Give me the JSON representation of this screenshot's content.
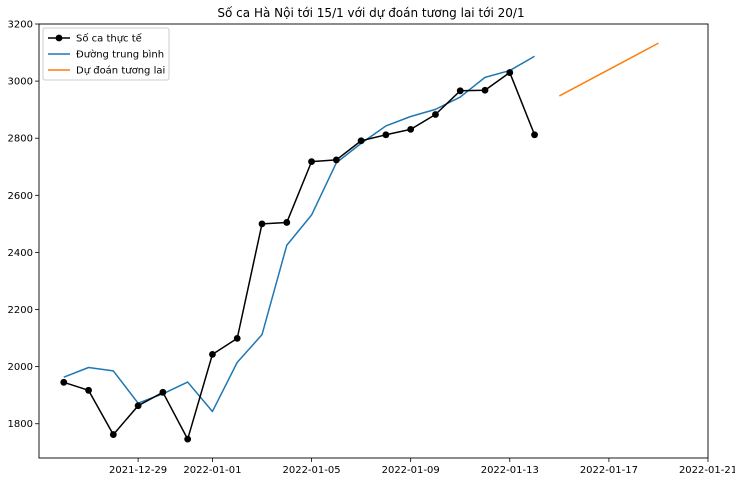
{
  "chart_data": {
    "type": "line",
    "title": "Số ca Hà Nội tới 15/1 với dự đoán tương lai tới 20/1",
    "xlabel": "",
    "ylabel": "",
    "xlim": [
      "2021-12-25",
      "2022-01-21"
    ],
    "ylim": [
      1680,
      3200
    ],
    "x_ticks": [
      "2021-12-29",
      "2022-01-01",
      "2022-01-05",
      "2022-01-09",
      "2022-01-13",
      "2022-01-17",
      "2022-01-21"
    ],
    "y_ticks": [
      1800,
      2000,
      2200,
      2400,
      2600,
      2800,
      3000,
      3200
    ],
    "grid": false,
    "legend_position": "top-left",
    "series": [
      {
        "name": "Số ca thực tế",
        "color": "#000000",
        "marker": "circle",
        "x": [
          "2021-12-26",
          "2021-12-27",
          "2021-12-28",
          "2021-12-29",
          "2021-12-30",
          "2021-12-31",
          "2022-01-01",
          "2022-01-02",
          "2022-01-03",
          "2022-01-04",
          "2022-01-05",
          "2022-01-06",
          "2022-01-07",
          "2022-01-08",
          "2022-01-09",
          "2022-01-10",
          "2022-01-11",
          "2022-01-12",
          "2022-01-13",
          "2022-01-14"
        ],
        "values": [
          1945,
          1917,
          1762,
          1863,
          1910,
          1746,
          2043,
          2099,
          2500,
          2505,
          2718,
          2724,
          2791,
          2812,
          2831,
          2883,
          2966,
          2968,
          3030,
          2812
        ]
      },
      {
        "name": "Đường trung bình",
        "color": "#1f77b4",
        "marker": "none",
        "x": [
          "2021-12-26",
          "2021-12-27",
          "2021-12-28",
          "2021-12-29",
          "2021-12-30",
          "2021-12-31",
          "2022-01-01",
          "2022-01-02",
          "2022-01-03",
          "2022-01-04",
          "2022-01-05",
          "2022-01-06",
          "2022-01-07",
          "2022-01-08",
          "2022-01-09",
          "2022-01-10",
          "2022-01-11",
          "2022-01-12",
          "2022-01-13",
          "2022-01-14"
        ],
        "values": [
          1963,
          1997,
          1985,
          1872,
          1905,
          1946,
          1843,
          2015,
          2112,
          2425,
          2531,
          2714,
          2782,
          2843,
          2876,
          2901,
          2944,
          3013,
          3037,
          3087
        ]
      },
      {
        "name": "Dự đoán tương lai",
        "color": "#ff7f0e",
        "marker": "none",
        "x": [
          "2022-01-15",
          "2022-01-19"
        ],
        "values": [
          2948,
          3133
        ]
      }
    ]
  }
}
